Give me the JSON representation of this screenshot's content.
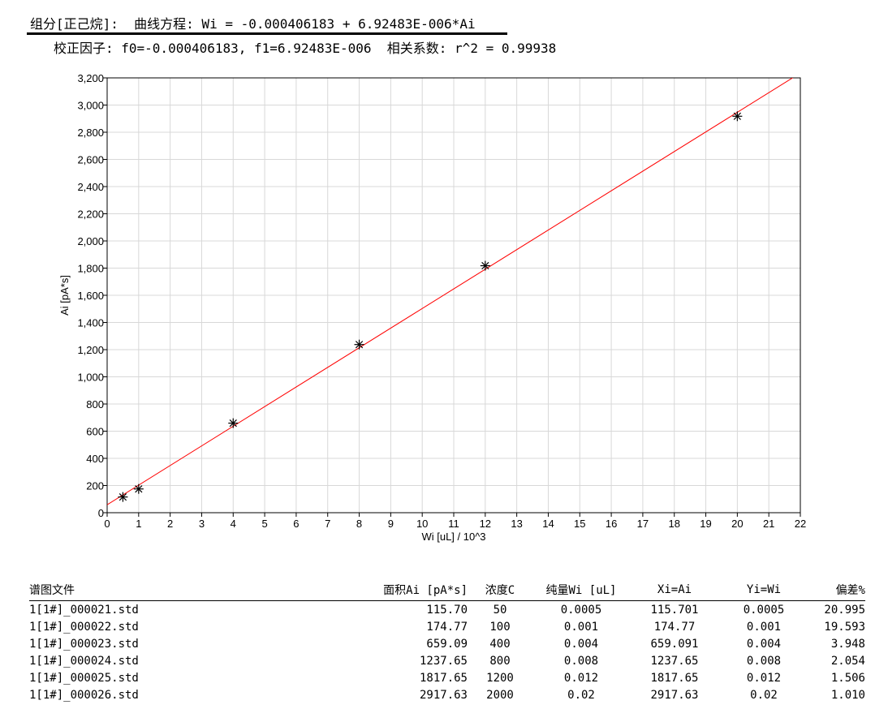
{
  "header": {
    "line1": "组分[正己烷]:  曲线方程: Wi = -0.000406183 + 6.92483E-006*Ai",
    "line2": "校正因子: f0=-0.000406183, f1=6.92483E-006  相关系数: r^2 = 0.99938"
  },
  "chart_data": {
    "type": "scatter",
    "xlabel": "Wi [uL] / 10^3",
    "ylabel": "Ai [pA*s]",
    "xlim": [
      0,
      22
    ],
    "ylim": [
      0,
      3200
    ],
    "xticks": [
      0,
      1,
      2,
      3,
      4,
      5,
      6,
      7,
      8,
      9,
      10,
      11,
      12,
      13,
      14,
      15,
      16,
      17,
      18,
      19,
      20,
      21,
      22
    ],
    "yticks": [
      "0",
      "200",
      "400",
      "600",
      "800",
      "1,000",
      "1,200",
      "1,400",
      "1,600",
      "1,800",
      "2,000",
      "2,200",
      "2,400",
      "2,600",
      "2,800",
      "3,000",
      "3,200"
    ],
    "grid": true,
    "points": {
      "x": [
        0.5,
        1,
        4,
        8,
        12,
        20
      ],
      "y": [
        115.7,
        174.77,
        659.09,
        1237.65,
        1817.65,
        2917.63
      ],
      "marker": "asterisk",
      "color": "#000000"
    },
    "fit": {
      "f0": -0.000406183,
      "f1": 6.92483e-06,
      "color": "#ff0000"
    }
  },
  "table": {
    "headers": [
      "谱图文件",
      "面积Ai [pA*s]",
      "浓度C",
      "纯量Wi [uL]",
      "Xi=Ai",
      "Yi=Wi",
      "偏差%"
    ],
    "rows": [
      [
        "1[1#]_000021.std",
        "115.70",
        "50",
        "0.0005",
        "115.701",
        "0.0005",
        "20.995"
      ],
      [
        "1[1#]_000022.std",
        "174.77",
        "100",
        "0.001",
        "174.77",
        "0.001",
        "19.593"
      ],
      [
        "1[1#]_000023.std",
        "659.09",
        "400",
        "0.004",
        "659.091",
        "0.004",
        "3.948"
      ],
      [
        "1[1#]_000024.std",
        "1237.65",
        "800",
        "0.008",
        "1237.65",
        "0.008",
        "2.054"
      ],
      [
        "1[1#]_000025.std",
        "1817.65",
        "1200",
        "0.012",
        "1817.65",
        "0.012",
        "1.506"
      ],
      [
        "1[1#]_000026.std",
        "2917.63",
        "2000",
        "0.02",
        "2917.63",
        "0.02",
        "1.010"
      ]
    ]
  }
}
